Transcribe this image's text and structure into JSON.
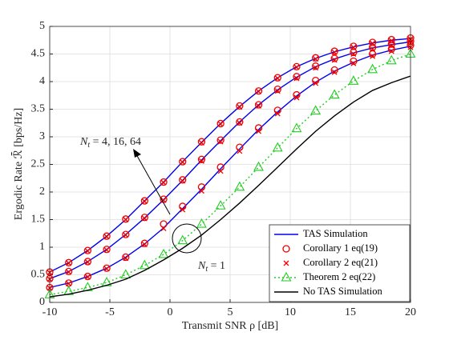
{
  "chart_data": {
    "type": "line",
    "x_label": "Transmit SNR ρ [dB]",
    "y_label": "Ergodic Rate ℛ̄ [bps/Hz]",
    "x": [
      -10,
      -8.42,
      -6.84,
      -5.26,
      -3.68,
      -2.11,
      -0.53,
      1.05,
      2.63,
      4.21,
      5.79,
      7.37,
      8.95,
      10.53,
      12.11,
      13.68,
      15.26,
      16.84,
      18.42,
      20
    ],
    "xlim": [
      -10,
      20
    ],
    "xticks": [
      -10,
      -5,
      0,
      5,
      10,
      15,
      20
    ],
    "ylim": [
      0,
      5
    ],
    "yticks": [
      0,
      0.5,
      1,
      1.5,
      2,
      2.5,
      3,
      3.5,
      4,
      4.5,
      5
    ],
    "grid": true,
    "legend": "lower right",
    "annotations": [
      {
        "main": "N",
        "sub": "t",
        "rest": " = 4, 16, 64"
      },
      {
        "main": "N",
        "sub": "t",
        "rest": " = 1"
      }
    ],
    "series": [
      {
        "name": "TAS Simulation",
        "color": "#0000ee",
        "line": "solid",
        "values": [
          [
            0.55,
            0.72,
            0.94,
            1.2,
            1.5,
            1.84,
            2.18,
            2.55,
            2.9,
            3.24,
            3.55,
            3.83,
            4.07,
            4.27,
            4.42,
            4.54,
            4.63,
            4.7,
            4.75,
            4.78
          ],
          [
            0.43,
            0.56,
            0.74,
            0.96,
            1.23,
            1.53,
            1.86,
            2.21,
            2.58,
            2.93,
            3.27,
            3.58,
            3.85,
            4.08,
            4.27,
            4.41,
            4.52,
            4.61,
            4.67,
            4.72
          ],
          [
            0.27,
            0.35,
            0.47,
            0.62,
            0.82,
            1.06,
            1.35,
            1.7,
            2.05,
            2.42,
            2.78,
            3.13,
            3.45,
            3.74,
            3.99,
            4.19,
            4.35,
            4.48,
            4.57,
            4.64
          ]
        ]
      },
      {
        "name": "Corollary 1 eq(19)",
        "color": "#ee0000",
        "marker": "circle",
        "values": [
          [
            0.55,
            0.72,
            0.94,
            1.2,
            1.51,
            1.84,
            2.18,
            2.55,
            2.91,
            3.24,
            3.56,
            3.83,
            4.07,
            4.27,
            4.43,
            4.55,
            4.64,
            4.71,
            4.76,
            4.79
          ],
          [
            0.43,
            0.56,
            0.74,
            0.96,
            1.23,
            1.54,
            1.87,
            2.22,
            2.59,
            2.94,
            3.27,
            3.58,
            3.86,
            4.09,
            4.28,
            4.42,
            4.53,
            4.62,
            4.68,
            4.73
          ],
          [
            0.27,
            0.35,
            0.47,
            0.62,
            0.82,
            1.07,
            1.42,
            1.74,
            2.09,
            2.45,
            2.81,
            3.16,
            3.48,
            3.76,
            4.02,
            4.21,
            4.37,
            4.5,
            4.59,
            4.66
          ]
        ]
      },
      {
        "name": "Corollary 2 eq(21)",
        "color": "#ee0000",
        "marker": "x",
        "values": [
          [
            0.54,
            0.71,
            0.93,
            1.19,
            1.5,
            1.83,
            2.17,
            2.54,
            2.89,
            3.23,
            3.54,
            3.82,
            4.06,
            4.26,
            4.41,
            4.53,
            4.62,
            4.69,
            4.74,
            4.77
          ],
          [
            0.42,
            0.55,
            0.73,
            0.95,
            1.22,
            1.52,
            1.85,
            2.2,
            2.56,
            2.91,
            3.25,
            3.56,
            3.83,
            4.06,
            4.25,
            4.39,
            4.5,
            4.59,
            4.65,
            4.7
          ],
          [
            0.26,
            0.34,
            0.46,
            0.61,
            0.8,
            1.05,
            1.34,
            1.68,
            2.02,
            2.38,
            2.74,
            3.1,
            3.42,
            3.71,
            3.97,
            4.17,
            4.33,
            4.46,
            4.55,
            4.62
          ]
        ]
      },
      {
        "name": "Theorem 2 eq(22)",
        "color": "#22cc22",
        "line": "dotted",
        "marker": "triangle",
        "values": [
          [
            0.14,
            0.2,
            0.27,
            0.36,
            0.5,
            0.67,
            0.87,
            1.12,
            1.42,
            1.75,
            2.09,
            2.45,
            2.8,
            3.15,
            3.47,
            3.76,
            4.01,
            4.22,
            4.38,
            4.5
          ]
        ]
      },
      {
        "name": "No TAS Simulation",
        "color": "#000000",
        "line": "solid",
        "values": [
          [
            0.1,
            0.15,
            0.22,
            0.31,
            0.42,
            0.58,
            0.77,
            0.98,
            1.22,
            1.5,
            1.8,
            2.12,
            2.45,
            2.78,
            3.1,
            3.38,
            3.63,
            3.84,
            3.98,
            4.1
          ]
        ]
      }
    ]
  }
}
